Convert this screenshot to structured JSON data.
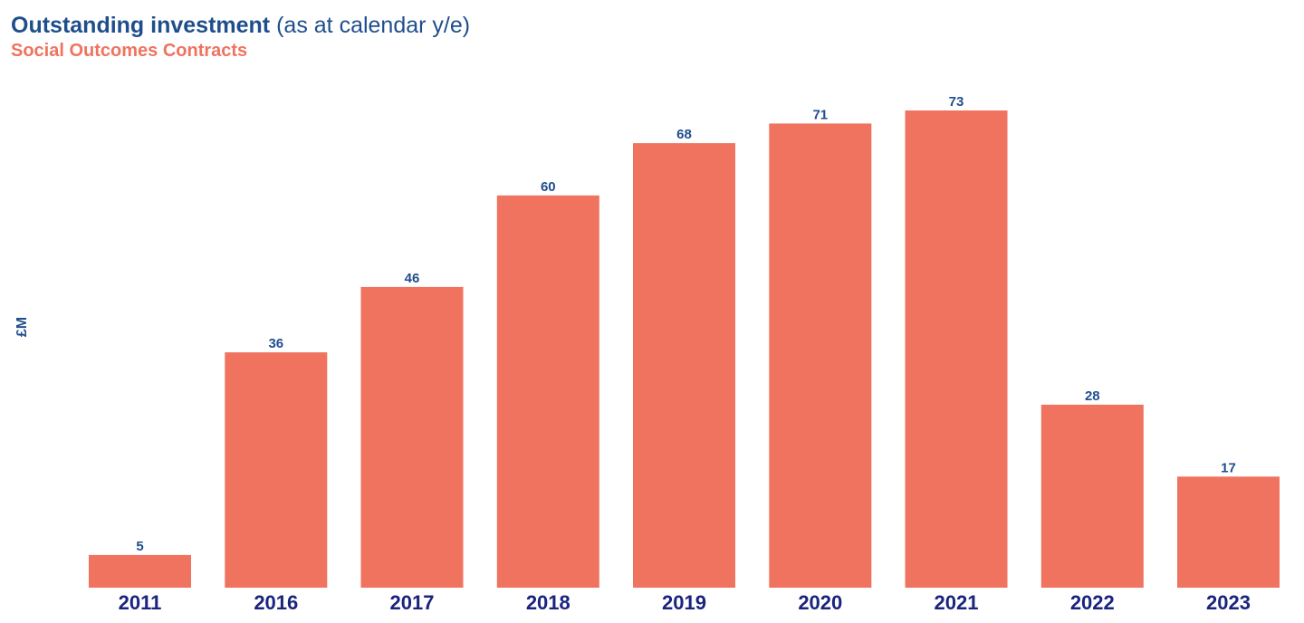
{
  "title": {
    "bold": "Outstanding investment",
    "light": "(as at calendar y/e)"
  },
  "subtitle": "Social Outcomes Contracts",
  "colors": {
    "title": "#1f4e8c",
    "subtitle": "#ef735f",
    "bar": "#ef735f",
    "value_label": "#1f4e8c",
    "category_label": "#1a237e"
  },
  "chart_data": {
    "type": "bar",
    "categories": [
      "2011",
      "2016",
      "2017",
      "2018",
      "2019",
      "2020",
      "2021",
      "2022",
      "2023"
    ],
    "values": [
      5,
      36,
      46,
      60,
      68,
      71,
      73,
      28,
      17
    ],
    "title": "Outstanding investment (as at calendar y/e)",
    "subtitle": "Social Outcomes Contracts",
    "xlabel": "",
    "ylabel": "£M",
    "ylim": [
      0,
      73
    ],
    "grid": false,
    "data_labels": true
  }
}
